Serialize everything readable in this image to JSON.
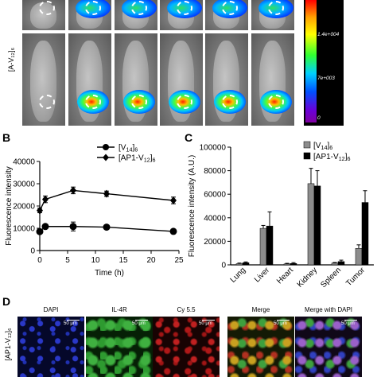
{
  "panels": {
    "A": {
      "row_label": "[A-V₁₂]₆",
      "colorbar": {
        "labels": [
          "1.4e+004",
          "7e+003",
          "0"
        ]
      }
    },
    "B": {
      "letter": "B"
    },
    "C": {
      "letter": "C"
    },
    "D": {
      "letter": "D",
      "row_label": "[AP1-V₁₂]₆",
      "columns": [
        "DAPI",
        "IL-4R",
        "Cy 5.5",
        "Merge",
        "Merge with DAPI"
      ],
      "scale_label": "50 μm"
    }
  },
  "chart_data": [
    {
      "id": "B",
      "type": "line",
      "xlabel": "Time (h)",
      "ylabel": "Fluorescence intensity",
      "xlim": [
        0,
        25
      ],
      "ylim": [
        0,
        40000
      ],
      "x_ticks": [
        0,
        5,
        10,
        15,
        20,
        25
      ],
      "y_ticks": [
        0,
        10000,
        20000,
        30000,
        40000
      ],
      "legend_position": "top-right",
      "series": [
        {
          "name": "[V₁₄]₆",
          "marker": "circle",
          "x": [
            0,
            1,
            6,
            12,
            24
          ],
          "y": [
            8500,
            10800,
            10800,
            10500,
            8600
          ],
          "err": [
            1000,
            800,
            2000,
            700,
            600
          ]
        },
        {
          "name": "[AP1-V₁₂]₆",
          "marker": "diamond",
          "x": [
            0,
            1,
            6,
            12,
            24
          ],
          "y": [
            18000,
            23000,
            27000,
            25500,
            22500
          ],
          "err": [
            1000,
            1500,
            1500,
            1200,
            1500
          ]
        }
      ]
    },
    {
      "id": "C",
      "type": "bar",
      "ylabel": "Fluorescence intensity (A.U.)",
      "ylim": [
        0,
        100000
      ],
      "y_ticks": [
        0,
        20000,
        40000,
        60000,
        80000,
        100000
      ],
      "legend_position": "top-left",
      "categories": [
        "Lung",
        "Liver",
        "Heart",
        "Kidney",
        "Spleen",
        "Tumor"
      ],
      "series": [
        {
          "name": "[V₁₄]₆",
          "color": "#8c8c8c",
          "values": [
            1000,
            31000,
            800,
            69000,
            1500,
            14000
          ],
          "err": [
            500,
            2500,
            500,
            13000,
            500,
            3000
          ]
        },
        {
          "name": "[AP1-V₁₂]₆",
          "color": "#000000",
          "values": [
            1800,
            33000,
            1200,
            67000,
            2800,
            53000
          ],
          "err": [
            700,
            12000,
            700,
            13000,
            1200,
            10000
          ]
        }
      ]
    }
  ]
}
